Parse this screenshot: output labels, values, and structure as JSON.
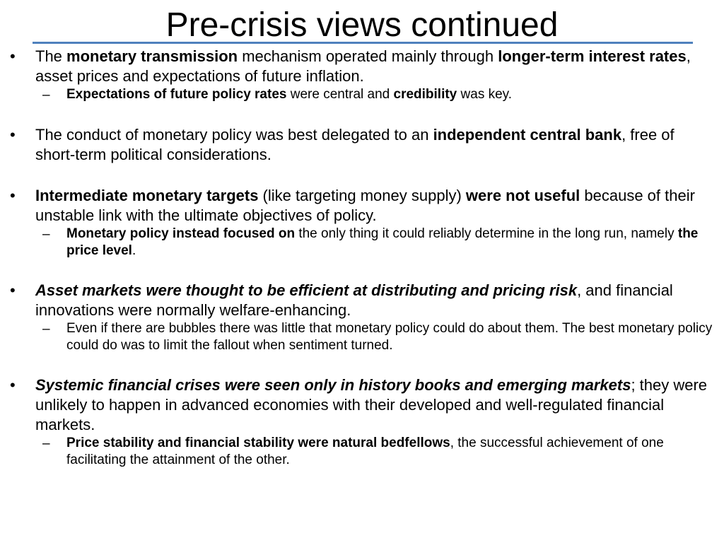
{
  "slide": {
    "title": "Pre-crisis views continued",
    "bullet_symbol": "•",
    "dash_symbol": "–",
    "b1": {
      "p1": "The ",
      "p2": "monetary transmission",
      "p3": " mechanism operated mainly  through ",
      "p4": "longer-term interest rates",
      "p5": ", asset prices and expectations of future inflation.",
      "sub1": {
        "p1": "Expectations of future policy rates",
        "p2": " were central and ",
        "p3": "credibility",
        "p4": " was key."
      }
    },
    "b2": {
      "p1": "The conduct of monetary policy was best delegated to an ",
      "p2": "independent central bank",
      "p3": ", free of short-term political considerations."
    },
    "b3": {
      "p1": "Intermediate monetary targets",
      "p2": " (like targeting money supply) ",
      "p3": "were not useful",
      "p4": " because of their unstable link with the ultimate objectives of policy.",
      "sub1": {
        "p1": "Monetary policy instead focused on",
        "p2": " the only thing it could reliably determine in the long run, namely ",
        "p3": "the price level",
        "p4": "."
      }
    },
    "b4": {
      "p1": " Asset markets were thought to be efficient at distributing and pricing risk",
      "p2": ", and financial innovations were normally welfare-enhancing.",
      "sub1": {
        "p1": "Even if there are bubbles there was little that monetary policy could do about them. The best monetary policy could do was to limit the fallout when sentiment turned."
      }
    },
    "b5": {
      "p1": "Systemic financial crises were seen only in history books and emerging markets",
      "p2": "; they were unlikely to happen in advanced economies with their developed and well-regulated financial markets.",
      "sub1": {
        "p1": "Price stability and financial stability were natural bedfellows",
        "p2": ", the successful achievement of one facilitating the attainment of the other."
      }
    }
  }
}
